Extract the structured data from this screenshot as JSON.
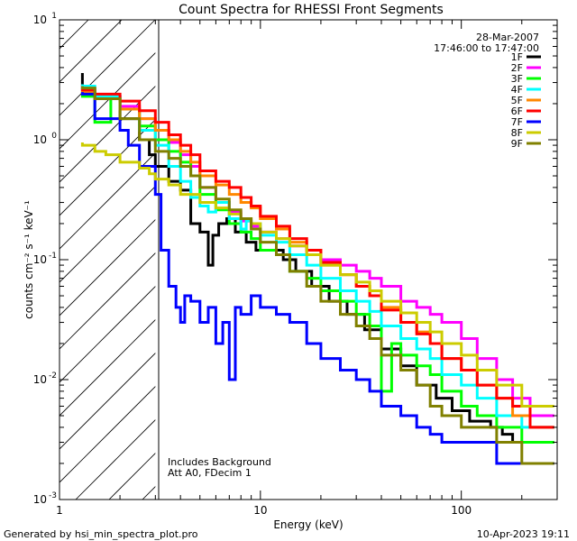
{
  "chart_data": {
    "type": "line",
    "title": "Count Spectra for RHESSI Front Segments",
    "xlabel": "Energy (keV)",
    "ylabel": "counts cm⁻² s⁻¹ keV⁻¹",
    "xscale": "log",
    "yscale": "log",
    "xlim": [
      1,
      300
    ],
    "ylim": [
      0.001,
      10
    ],
    "x_tick_labels": [
      {
        "value": 1,
        "label": "1"
      },
      {
        "value": 10,
        "label": "10"
      },
      {
        "value": 100,
        "label": "100"
      }
    ],
    "y_tick_labels": [
      {
        "value": 0.001,
        "base": "10",
        "exp": "-3"
      },
      {
        "value": 0.01,
        "base": "10",
        "exp": "-2"
      },
      {
        "value": 0.1,
        "base": "10",
        "exp": "-1"
      },
      {
        "value": 1,
        "base": "10",
        "exp": "0"
      },
      {
        "value": 10,
        "base": "10",
        "exp": "1"
      }
    ],
    "shaded_region": {
      "x_from": 1,
      "x_to": 3,
      "style": "hatched"
    },
    "legend_position": "top-right",
    "date_line": "28-Mar-2007",
    "time_range": "17:46:00 to 17:47:00",
    "annotations": [
      "Includes Background",
      "Att A0, FDecim 1"
    ],
    "series": [
      {
        "name": "1F",
        "color": "#000000",
        "points": [
          [
            1.3,
            3.6
          ],
          [
            1.5,
            2.7
          ],
          [
            2,
            2.3
          ],
          [
            2.5,
            1.5
          ],
          [
            2.8,
            1
          ],
          [
            3,
            0.75
          ],
          [
            3.5,
            0.6
          ],
          [
            4,
            0.45
          ],
          [
            4.5,
            0.38
          ],
          [
            5,
            0.2
          ],
          [
            5.5,
            0.17
          ],
          [
            5.8,
            0.09
          ],
          [
            6.2,
            0.16
          ],
          [
            6.8,
            0.2
          ],
          [
            7.5,
            0.22
          ],
          [
            8.5,
            0.17
          ],
          [
            9.5,
            0.14
          ],
          [
            11,
            0.12
          ],
          [
            13,
            0.12
          ],
          [
            15,
            0.1
          ],
          [
            18,
            0.08
          ],
          [
            22,
            0.06
          ],
          [
            27,
            0.045
          ],
          [
            33,
            0.035
          ],
          [
            40,
            0.026
          ],
          [
            50,
            0.018
          ],
          [
            60,
            0.013
          ],
          [
            75,
            0.009
          ],
          [
            90,
            0.007
          ],
          [
            110,
            0.0055
          ],
          [
            140,
            0.0045
          ],
          [
            160,
            0.004
          ],
          [
            180,
            0.0035
          ],
          [
            200,
            0.003
          ],
          [
            250,
            0.003
          ],
          [
            290,
            0.003
          ]
        ]
      },
      {
        "name": "2F",
        "color": "#ff00ff",
        "points": [
          [
            1.3,
            2.8
          ],
          [
            1.5,
            2.6
          ],
          [
            2,
            2.3
          ],
          [
            2.5,
            1.9
          ],
          [
            3,
            1.5
          ],
          [
            3.5,
            1.2
          ],
          [
            4,
            0.95
          ],
          [
            4.5,
            0.75
          ],
          [
            5,
            0.6
          ],
          [
            6,
            0.4
          ],
          [
            7,
            0.3
          ],
          [
            8,
            0.25
          ],
          [
            9,
            0.21
          ],
          [
            10,
            0.19
          ],
          [
            12,
            0.17
          ],
          [
            14,
            0.15
          ],
          [
            17,
            0.13
          ],
          [
            20,
            0.11
          ],
          [
            25,
            0.1
          ],
          [
            30,
            0.09
          ],
          [
            35,
            0.08
          ],
          [
            40,
            0.07
          ],
          [
            50,
            0.06
          ],
          [
            60,
            0.045
          ],
          [
            70,
            0.04
          ],
          [
            80,
            0.035
          ],
          [
            100,
            0.03
          ],
          [
            120,
            0.022
          ],
          [
            150,
            0.015
          ],
          [
            180,
            0.01
          ],
          [
            220,
            0.007
          ],
          [
            290,
            0.005
          ]
        ]
      },
      {
        "name": "3F",
        "color": "#00ff00",
        "points": [
          [
            1.3,
            2.5
          ],
          [
            1.5,
            2.3
          ],
          [
            1.8,
            1.4
          ],
          [
            2,
            2.2
          ],
          [
            2.5,
            1.8
          ],
          [
            3,
            1.3
          ],
          [
            3.5,
            1
          ],
          [
            4,
            0.8
          ],
          [
            4.5,
            0.65
          ],
          [
            5,
            0.5
          ],
          [
            6,
            0.35
          ],
          [
            7,
            0.26
          ],
          [
            8,
            0.2
          ],
          [
            9,
            0.17
          ],
          [
            10,
            0.15
          ],
          [
            12,
            0.12
          ],
          [
            14,
            0.11
          ],
          [
            17,
            0.08
          ],
          [
            20,
            0.07
          ],
          [
            25,
            0.055
          ],
          [
            30,
            0.045
          ],
          [
            35,
            0.035
          ],
          [
            40,
            0.028
          ],
          [
            45,
            0.008
          ],
          [
            50,
            0.02
          ],
          [
            60,
            0.016
          ],
          [
            70,
            0.013
          ],
          [
            80,
            0.011
          ],
          [
            100,
            0.008
          ],
          [
            120,
            0.006
          ],
          [
            150,
            0.005
          ],
          [
            200,
            0.004
          ],
          [
            290,
            0.003
          ]
        ]
      },
      {
        "name": "4F",
        "color": "#00ffff",
        "points": [
          [
            1.3,
            2.9
          ],
          [
            1.5,
            2.8
          ],
          [
            2,
            2.3
          ],
          [
            2.5,
            1.8
          ],
          [
            3,
            1.2
          ],
          [
            3.5,
            0.9
          ],
          [
            4,
            0.6
          ],
          [
            4.5,
            0.45
          ],
          [
            5,
            0.33
          ],
          [
            5.5,
            0.28
          ],
          [
            6,
            0.25
          ],
          [
            7,
            0.3
          ],
          [
            8,
            0.22
          ],
          [
            8.5,
            0.18
          ],
          [
            9,
            0.21
          ],
          [
            10,
            0.2
          ],
          [
            12,
            0.16
          ],
          [
            14,
            0.14
          ],
          [
            17,
            0.11
          ],
          [
            20,
            0.09
          ],
          [
            25,
            0.07
          ],
          [
            30,
            0.055
          ],
          [
            35,
            0.045
          ],
          [
            40,
            0.037
          ],
          [
            50,
            0.028
          ],
          [
            60,
            0.022
          ],
          [
            70,
            0.018
          ],
          [
            80,
            0.015
          ],
          [
            100,
            0.011
          ],
          [
            120,
            0.009
          ],
          [
            150,
            0.007
          ],
          [
            200,
            0.005
          ],
          [
            250,
            0.004
          ],
          [
            290,
            0.004
          ]
        ]
      },
      {
        "name": "5F",
        "color": "#ff8800",
        "points": [
          [
            1.3,
            2.6
          ],
          [
            1.5,
            2.5
          ],
          [
            2,
            2.2
          ],
          [
            2.5,
            1.8
          ],
          [
            3,
            1.5
          ],
          [
            3.5,
            1.2
          ],
          [
            4,
            1
          ],
          [
            4.5,
            0.8
          ],
          [
            5,
            0.65
          ],
          [
            6,
            0.5
          ],
          [
            7,
            0.42
          ],
          [
            8,
            0.35
          ],
          [
            9,
            0.3
          ],
          [
            10,
            0.27
          ],
          [
            12,
            0.22
          ],
          [
            14,
            0.18
          ],
          [
            17,
            0.14
          ],
          [
            20,
            0.12
          ],
          [
            25,
            0.09
          ],
          [
            30,
            0.075
          ],
          [
            35,
            0.06
          ],
          [
            40,
            0.05
          ],
          [
            50,
            0.04
          ],
          [
            60,
            0.03
          ],
          [
            70,
            0.025
          ],
          [
            80,
            0.02
          ],
          [
            100,
            0.015
          ],
          [
            120,
            0.012
          ],
          [
            150,
            0.009
          ],
          [
            180,
            0.007
          ],
          [
            220,
            0.005
          ],
          [
            290,
            0.004
          ]
        ]
      },
      {
        "name": "6F",
        "color": "#ff0000",
        "points": [
          [
            1.3,
            2.7
          ],
          [
            1.5,
            2.6
          ],
          [
            2,
            2.4
          ],
          [
            2.5,
            2.1
          ],
          [
            3,
            1.75
          ],
          [
            3.5,
            1.4
          ],
          [
            4,
            1.1
          ],
          [
            4.5,
            0.9
          ],
          [
            5,
            0.75
          ],
          [
            6,
            0.55
          ],
          [
            7,
            0.45
          ],
          [
            8,
            0.4
          ],
          [
            9,
            0.33
          ],
          [
            10,
            0.28
          ],
          [
            12,
            0.23
          ],
          [
            14,
            0.19
          ],
          [
            17,
            0.15
          ],
          [
            20,
            0.12
          ],
          [
            25,
            0.095
          ],
          [
            30,
            0.075
          ],
          [
            35,
            0.06
          ],
          [
            40,
            0.05
          ],
          [
            50,
            0.038
          ],
          [
            60,
            0.03
          ],
          [
            70,
            0.024
          ],
          [
            80,
            0.02
          ],
          [
            100,
            0.015
          ],
          [
            120,
            0.012
          ],
          [
            150,
            0.009
          ],
          [
            180,
            0.007
          ],
          [
            220,
            0.006
          ],
          [
            290,
            0.004
          ]
        ]
      },
      {
        "name": "7F",
        "color": "#0000ff",
        "points": [
          [
            1.3,
            2.5
          ],
          [
            1.5,
            2.4
          ],
          [
            2,
            1.5
          ],
          [
            2.2,
            1.2
          ],
          [
            2.5,
            0.9
          ],
          [
            3,
            0.6
          ],
          [
            3.2,
            0.35
          ],
          [
            3.5,
            0.12
          ],
          [
            3.8,
            0.06
          ],
          [
            4,
            0.04
          ],
          [
            4.2,
            0.03
          ],
          [
            4.5,
            0.05
          ],
          [
            5,
            0.045
          ],
          [
            5.5,
            0.03
          ],
          [
            6,
            0.04
          ],
          [
            6.5,
            0.02
          ],
          [
            7,
            0.03
          ],
          [
            7.5,
            0.01
          ],
          [
            8,
            0.04
          ],
          [
            9,
            0.035
          ],
          [
            10,
            0.05
          ],
          [
            12,
            0.04
          ],
          [
            14,
            0.035
          ],
          [
            17,
            0.03
          ],
          [
            20,
            0.02
          ],
          [
            25,
            0.015
          ],
          [
            30,
            0.012
          ],
          [
            35,
            0.01
          ],
          [
            40,
            0.008
          ],
          [
            50,
            0.006
          ],
          [
            60,
            0.005
          ],
          [
            70,
            0.004
          ],
          [
            80,
            0.0035
          ],
          [
            100,
            0.003
          ],
          [
            150,
            0.003
          ],
          [
            200,
            0.002
          ],
          [
            290,
            0.002
          ]
        ]
      },
      {
        "name": "8F",
        "color": "#cccc00",
        "points": [
          [
            1.3,
            0.95
          ],
          [
            1.5,
            0.9
          ],
          [
            1.7,
            0.8
          ],
          [
            2,
            0.75
          ],
          [
            2.5,
            0.65
          ],
          [
            2.8,
            0.58
          ],
          [
            3,
            0.52
          ],
          [
            3.5,
            0.47
          ],
          [
            4,
            0.42
          ],
          [
            5,
            0.35
          ],
          [
            6,
            0.3
          ],
          [
            7,
            0.27
          ],
          [
            8,
            0.24
          ],
          [
            9,
            0.22
          ],
          [
            10,
            0.2
          ],
          [
            12,
            0.17
          ],
          [
            14,
            0.15
          ],
          [
            17,
            0.13
          ],
          [
            20,
            0.11
          ],
          [
            25,
            0.09
          ],
          [
            30,
            0.075
          ],
          [
            35,
            0.065
          ],
          [
            40,
            0.055
          ],
          [
            50,
            0.045
          ],
          [
            60,
            0.036
          ],
          [
            70,
            0.03
          ],
          [
            80,
            0.025
          ],
          [
            100,
            0.02
          ],
          [
            120,
            0.016
          ],
          [
            150,
            0.012
          ],
          [
            200,
            0.009
          ],
          [
            290,
            0.006
          ]
        ]
      },
      {
        "name": "9F",
        "color": "#808000",
        "points": [
          [
            1.3,
            2.8
          ],
          [
            1.5,
            2.7
          ],
          [
            2,
            2.2
          ],
          [
            2.5,
            1.5
          ],
          [
            3,
            1
          ],
          [
            3.5,
            0.8
          ],
          [
            4,
            0.7
          ],
          [
            4.5,
            0.6
          ],
          [
            5,
            0.5
          ],
          [
            6,
            0.4
          ],
          [
            7,
            0.32
          ],
          [
            8,
            0.26
          ],
          [
            9,
            0.22
          ],
          [
            10,
            0.18
          ],
          [
            12,
            0.14
          ],
          [
            14,
            0.11
          ],
          [
            17,
            0.08
          ],
          [
            20,
            0.06
          ],
          [
            25,
            0.045
          ],
          [
            30,
            0.035
          ],
          [
            35,
            0.028
          ],
          [
            40,
            0.022
          ],
          [
            50,
            0.016
          ],
          [
            60,
            0.012
          ],
          [
            70,
            0.009
          ],
          [
            80,
            0.006
          ],
          [
            100,
            0.005
          ],
          [
            120,
            0.004
          ],
          [
            150,
            0.004
          ],
          [
            200,
            0.003
          ],
          [
            290,
            0.002
          ]
        ]
      }
    ]
  },
  "footer": {
    "left": "Generated by hsi_min_spectra_plot.pro",
    "right": "10-Apr-2023 19:11"
  }
}
